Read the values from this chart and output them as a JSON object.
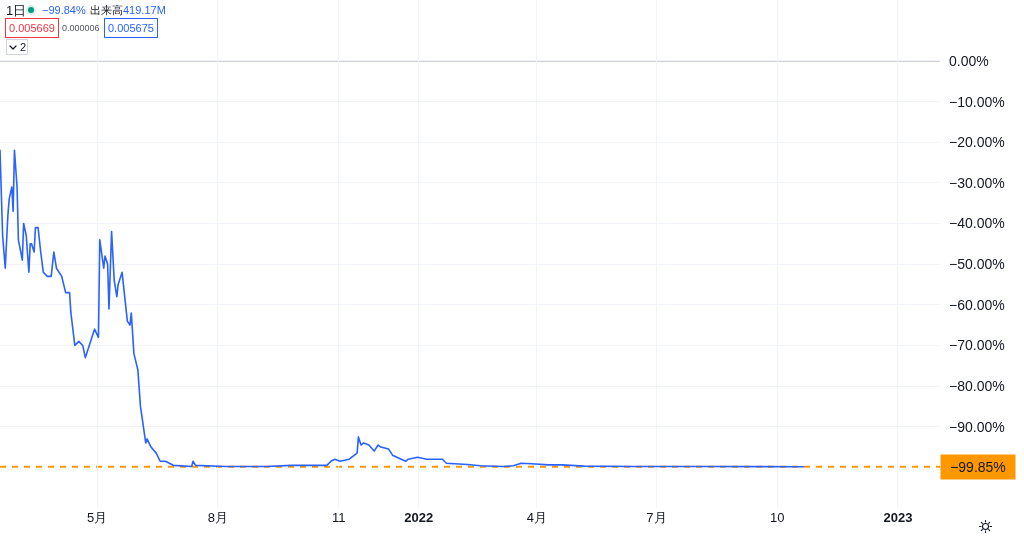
{
  "chart_data": {
    "type": "line",
    "title": "1日",
    "annotations": [
      "−99.84%",
      "出来高",
      "419.17M",
      "0.005669",
      "0.000006",
      "0.005675",
      "2"
    ],
    "x": [
      "2021-02-16",
      "2021-02-18",
      "2021-02-20",
      "2021-02-22",
      "2021-02-23",
      "2021-02-25",
      "2021-02-26",
      "2021-02-27",
      "2021-03-01",
      "2021-03-02",
      "2021-03-05",
      "2021-03-06",
      "2021-03-08",
      "2021-03-10",
      "2021-03-11",
      "2021-03-12",
      "2021-03-14",
      "2021-03-15",
      "2021-03-17",
      "2021-03-19",
      "2021-03-21",
      "2021-03-24",
      "2021-03-27",
      "2021-03-29",
      "2021-03-31",
      "2021-04-04",
      "2021-04-07",
      "2021-04-10",
      "2021-04-11",
      "2021-04-14",
      "2021-04-17",
      "2021-04-20",
      "2021-04-22",
      "2021-04-25",
      "2021-04-29",
      "2021-05-02",
      "2021-05-03",
      "2021-05-06",
      "2021-05-07",
      "2021-05-09",
      "2021-05-10",
      "2021-05-12",
      "2021-05-14",
      "2021-05-16",
      "2021-05-17",
      "2021-05-20",
      "2021-05-24",
      "2021-05-26",
      "2021-05-27",
      "2021-05-29",
      "2021-06-01",
      "2021-06-03",
      "2021-06-07",
      "2021-06-08",
      "2021-06-11",
      "2021-06-15",
      "2021-06-18",
      "2021-06-22",
      "2021-06-28",
      "2021-07-12",
      "2021-07-13",
      "2021-07-15",
      "2021-08-07",
      "2021-09-07",
      "2021-09-26",
      "2021-10-23",
      "2021-10-26",
      "2021-10-29",
      "2021-11-02",
      "2021-11-09",
      "2021-11-13",
      "2021-11-15",
      "2021-11-16",
      "2021-11-18",
      "2021-11-20",
      "2021-11-24",
      "2021-11-28",
      "2021-11-29",
      "2021-12-01",
      "2021-12-03",
      "2021-12-09",
      "2021-12-12",
      "2021-12-22",
      "2021-12-24",
      "2021-12-31",
      "2022-01-07",
      "2022-01-19",
      "2022-01-22",
      "2022-02-07",
      "2022-02-17",
      "2022-03-06",
      "2022-03-14",
      "2022-03-20",
      "2022-03-28",
      "2022-04-10",
      "2022-04-20",
      "2022-05-07",
      "2022-06-11",
      "2022-08-07",
      "2022-10-21"
    ],
    "series": [
      {
        "color": "#2962ff",
        "values": [
          -22,
          -43,
          -51,
          -38,
          -34,
          -31,
          -37,
          -22,
          -31,
          -44,
          -49,
          -40,
          -43,
          -52,
          -45,
          -45,
          -47,
          -41,
          -41,
          -47,
          -52,
          -53,
          -53,
          -47,
          -51,
          -53,
          -57,
          -57,
          -62,
          -70,
          -69,
          -70,
          -73,
          -70,
          -66,
          -68,
          -44,
          -51,
          -48,
          -50,
          -61,
          -42,
          -54,
          -58,
          -55,
          -52,
          -64,
          -65,
          -62,
          -72,
          -76,
          -85,
          -94,
          -93,
          -95,
          -96.5,
          -98.5,
          -98.5,
          -99.5,
          -99.8,
          -98.5,
          -99.5,
          -99.8,
          -99.8,
          -99.5,
          -99.5,
          -98.5,
          -98,
          -98.5,
          -98,
          -97,
          -96.5,
          -92.5,
          -94.5,
          -94,
          -94.5,
          -96,
          -95.5,
          -94.5,
          -95,
          -95.5,
          -97,
          -98.5,
          -98,
          -97.5,
          -98,
          -98,
          -99,
          -99.3,
          -99.6,
          -99.8,
          -99.6,
          -99,
          -99.1,
          -99.4,
          -99.4,
          -99.7,
          -99.8,
          -99.8,
          -99.85
        ]
      }
    ],
    "xlim": [
      "2021-02-16",
      "2023-02-02"
    ],
    "xticks": [
      {
        "value": "2021-05-01",
        "label": "5月"
      },
      {
        "value": "2021-08-01",
        "label": "8月"
      },
      {
        "value": "2021-11-01",
        "label": "11"
      },
      {
        "value": "2022-01-01",
        "label": "2022"
      },
      {
        "value": "2022-04-01",
        "label": "4月"
      },
      {
        "value": "2022-07-01",
        "label": "7月"
      },
      {
        "value": "2022-10-01",
        "label": "10"
      },
      {
        "value": "2023-01-01",
        "label": "2023"
      }
    ],
    "ylim": [
      -110,
      15
    ],
    "yticks": [
      {
        "value": 0,
        "label": "0.00%"
      },
      {
        "value": -10,
        "label": "−10.00%"
      },
      {
        "value": -20,
        "label": "−20.00%"
      },
      {
        "value": -30,
        "label": "−30.00%"
      },
      {
        "value": -40,
        "label": "−40.00%"
      },
      {
        "value": -50,
        "label": "−50.00%"
      },
      {
        "value": -60,
        "label": "−60.00%"
      },
      {
        "value": -70,
        "label": "−70.00%"
      },
      {
        "value": -80,
        "label": "−80.00%"
      },
      {
        "value": -90,
        "label": "−90.00%"
      }
    ],
    "grid": true,
    "ref_lines": [
      {
        "axis": "y",
        "value": 0,
        "color": "#9598a1",
        "line_style": "solid"
      },
      {
        "axis": "y",
        "value": -99.85,
        "label": "−99.85%",
        "color": "#ff9800",
        "line_style": "dashed"
      }
    ]
  }
}
